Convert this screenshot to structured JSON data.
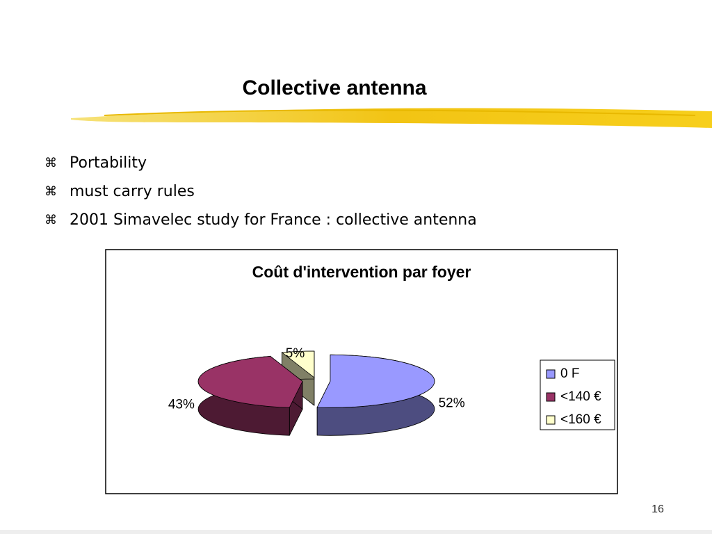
{
  "slide": {
    "title": "Collective antenna",
    "bullet_symbol": "⌘",
    "bullets": [
      "Portability",
      "must carry rules",
      "2001 Simavelec study for France : collective antenna"
    ],
    "page_number": "16"
  },
  "chart_data": {
    "type": "pie",
    "title": "Coût d'intervention par foyer",
    "categories": [
      "0 F",
      "<140 €",
      "<160 €"
    ],
    "values": [
      52,
      43,
      5
    ],
    "value_labels": [
      "52%",
      "43%",
      "5%"
    ],
    "colors": [
      "#9999ff",
      "#993366",
      "#ffffcc"
    ],
    "legend": "right"
  }
}
